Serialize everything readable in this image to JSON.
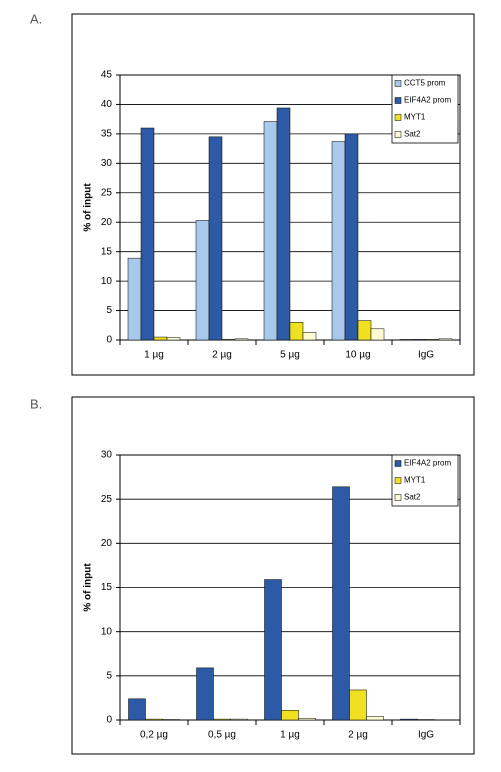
{
  "chart_data": [
    {
      "type": "bar",
      "panel": "A.",
      "y_label": "% of input",
      "categories": [
        "1 µg",
        "2 µg",
        "5 µg",
        "10 µg",
        "IgG"
      ],
      "series": [
        {
          "name": "CCT5 prom",
          "color": "#a9c9ec",
          "values": [
            13.9,
            20.3,
            37.1,
            33.7,
            0.1
          ]
        },
        {
          "name": "EIF4A2 prom",
          "color": "#2d5aa6",
          "values": [
            36.0,
            34.5,
            39.4,
            35.0,
            0.1
          ]
        },
        {
          "name": "MYT1",
          "color": "#efe021",
          "values": [
            0.5,
            0.1,
            3.0,
            3.3,
            0.1
          ]
        },
        {
          "name": "Sat2",
          "color": "#fffbd2",
          "values": [
            0.4,
            0.2,
            1.3,
            1.9,
            0.2
          ]
        }
      ],
      "ylim": [
        0,
        45
      ],
      "yticks": [
        0,
        5,
        10,
        15,
        20,
        25,
        30,
        35,
        40,
        45
      ],
      "grid": true,
      "legend": "top-right"
    },
    {
      "type": "bar",
      "panel": "B.",
      "y_label": "% of input",
      "categories": [
        "0,2 µg",
        "0,5 µg",
        "1 µg",
        "2 µg",
        "IgG"
      ],
      "series": [
        {
          "name": "EIF4A2 prom",
          "color": "#2d5aa6",
          "values": [
            2.4,
            5.9,
            15.9,
            26.4,
            0.1
          ]
        },
        {
          "name": "MYT1",
          "color": "#efe021",
          "values": [
            0.1,
            0.1,
            1.1,
            3.4,
            0.05
          ]
        },
        {
          "name": "Sat2",
          "color": "#fffbd2",
          "values": [
            0.05,
            0.1,
            0.2,
            0.4,
            0
          ]
        }
      ],
      "ylim": [
        0,
        30
      ],
      "yticks": [
        0,
        5,
        10,
        15,
        20,
        25,
        30
      ],
      "grid": true,
      "legend": "top-right"
    }
  ]
}
